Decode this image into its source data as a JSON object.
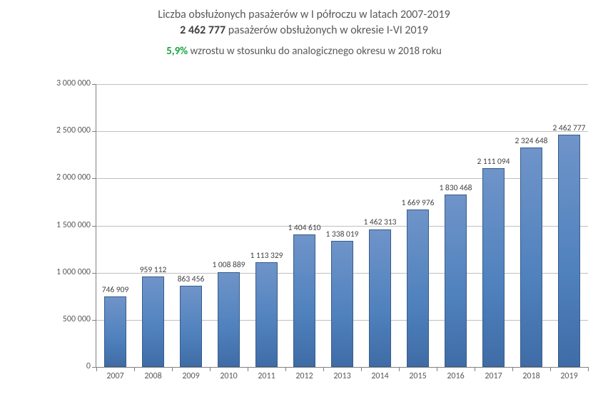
{
  "header": {
    "title_line_1": "Liczba obsłużonych pasażerów w  I półroczu w latach 2007-2019",
    "total_bold": "2 462 777",
    "total_rest": " pasażerów obsłużonych w okresie I-VI 2019",
    "growth_pct": "5,9%",
    "growth_rest": " wzrostu w stosunku do analogicznego okresu w 2018 roku",
    "growth_pct_color": "#16a53f",
    "title_color": "#595959",
    "title_fontsize": 16,
    "growth_fontsize": 15
  },
  "chart": {
    "type": "bar",
    "categories": [
      "2007",
      "2008",
      "2009",
      "2010",
      "2011",
      "2012",
      "2013",
      "2014",
      "2015",
      "2016",
      "2017",
      "2018",
      "2019"
    ],
    "values": [
      746909,
      959112,
      863456,
      1008889,
      1113329,
      1404610,
      1338019,
      1462313,
      1669976,
      1830468,
      2111094,
      2324648,
      2462777
    ],
    "value_labels": [
      "746 909",
      "959 112",
      "863 456",
      "1 008 889",
      "1 113 329",
      "1 404 610",
      "1 338 019",
      "1 462 313",
      "1 669 976",
      "1 830 468",
      "2 111 094",
      "2 324 648",
      "2 462 777"
    ],
    "ylim": [
      0,
      3000000
    ],
    "ytick_step": 500000,
    "ytick_labels": [
      "0",
      "500 000",
      "1 000 000",
      "1 500 000",
      "2 000 000",
      "2 500 000",
      "3 000 000"
    ],
    "bar_fill": "#4f81bd",
    "bar_fill_gradient_top": "#6f94c9",
    "bar_fill_gradient_bottom": "#3f6ca6",
    "bar_border": "#385d8a",
    "grid_color": "#bfbfbf",
    "axis_color": "#808080",
    "background_color": "#ffffff",
    "bar_width_ratio": 0.58,
    "label_fontsize": 12,
    "datalabel_fontsize": 11.5,
    "datalabel_color": "#404040"
  }
}
